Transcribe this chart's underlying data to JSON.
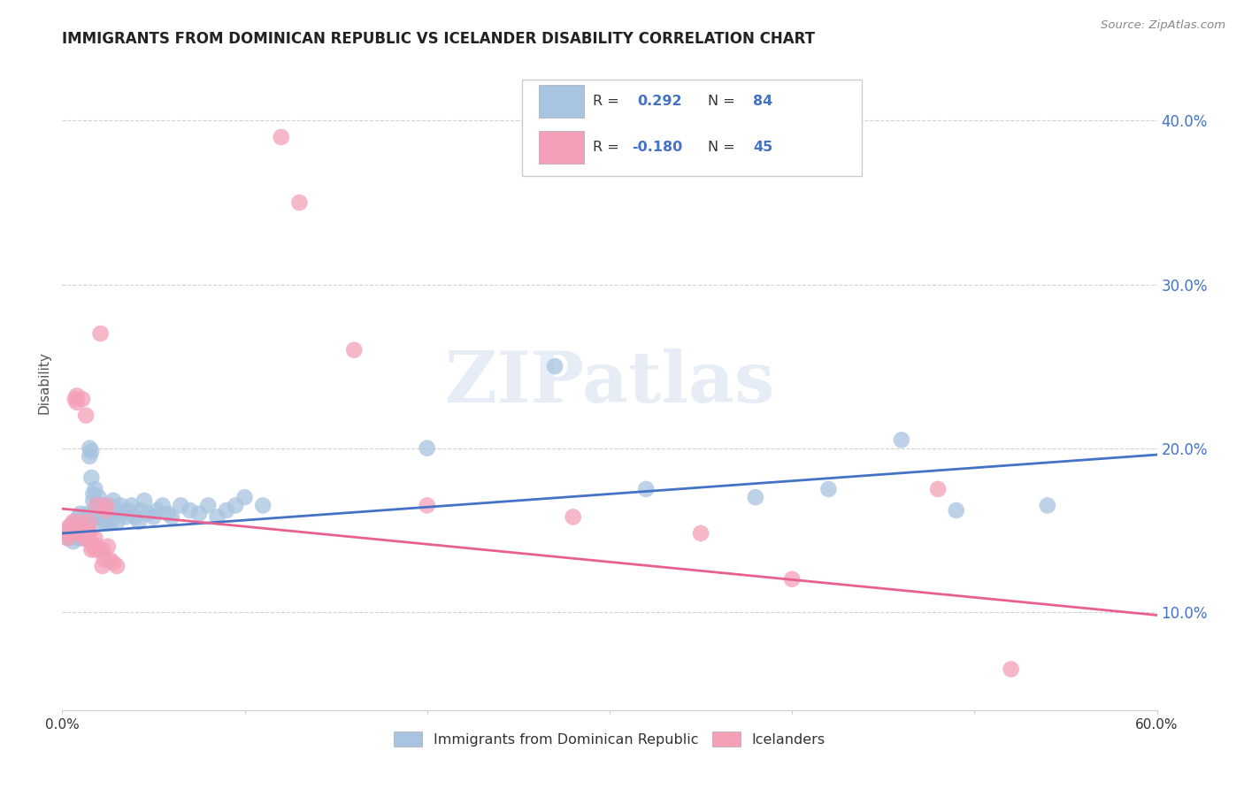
{
  "title": "IMMIGRANTS FROM DOMINICAN REPUBLIC VS ICELANDER DISABILITY CORRELATION CHART",
  "source": "Source: ZipAtlas.com",
  "ylabel": "Disability",
  "xlim": [
    0.0,
    0.6
  ],
  "ylim": [
    0.04,
    0.44
  ],
  "xlabel_ticks_pos": [
    0.0,
    0.1,
    0.2,
    0.3,
    0.4,
    0.5,
    0.6
  ],
  "xlabel_ticks_labels": [
    "0.0%",
    "",
    "",
    "",
    "",
    "",
    "60.0%"
  ],
  "ylabel_ticks_pos": [
    0.1,
    0.2,
    0.3,
    0.4
  ],
  "ylabel_ticks_labels": [
    "10.0%",
    "20.0%",
    "30.0%",
    "40.0%"
  ],
  "blue_R": 0.292,
  "blue_N": 84,
  "pink_R": -0.18,
  "pink_N": 45,
  "blue_color": "#a8c4e0",
  "pink_color": "#f4a0b8",
  "blue_line_color": "#4472c4",
  "pink_line_color": "#e86090",
  "watermark_text": "ZIPatlas",
  "legend_label_blue": "Immigrants from Dominican Republic",
  "legend_label_pink": "Icelanders",
  "blue_line_x": [
    0.0,
    0.6
  ],
  "blue_line_y": [
    0.148,
    0.196
  ],
  "pink_line_x": [
    0.0,
    0.6
  ],
  "pink_line_y": [
    0.163,
    0.098
  ],
  "blue_points": [
    [
      0.002,
      0.148
    ],
    [
      0.003,
      0.145
    ],
    [
      0.004,
      0.152
    ],
    [
      0.005,
      0.148
    ],
    [
      0.006,
      0.15
    ],
    [
      0.006,
      0.143
    ],
    [
      0.007,
      0.155
    ],
    [
      0.007,
      0.148
    ],
    [
      0.008,
      0.152
    ],
    [
      0.008,
      0.145
    ],
    [
      0.009,
      0.158
    ],
    [
      0.009,
      0.15
    ],
    [
      0.01,
      0.16
    ],
    [
      0.01,
      0.145
    ],
    [
      0.011,
      0.148
    ],
    [
      0.011,
      0.155
    ],
    [
      0.012,
      0.152
    ],
    [
      0.012,
      0.148
    ],
    [
      0.013,
      0.155
    ],
    [
      0.013,
      0.145
    ],
    [
      0.014,
      0.16
    ],
    [
      0.014,
      0.15
    ],
    [
      0.015,
      0.2
    ],
    [
      0.015,
      0.195
    ],
    [
      0.016,
      0.198
    ],
    [
      0.016,
      0.182
    ],
    [
      0.017,
      0.168
    ],
    [
      0.017,
      0.172
    ],
    [
      0.018,
      0.175
    ],
    [
      0.018,
      0.162
    ],
    [
      0.019,
      0.158
    ],
    [
      0.019,
      0.165
    ],
    [
      0.02,
      0.17
    ],
    [
      0.02,
      0.16
    ],
    [
      0.021,
      0.158
    ],
    [
      0.021,
      0.155
    ],
    [
      0.022,
      0.165
    ],
    [
      0.022,
      0.158
    ],
    [
      0.023,
      0.165
    ],
    [
      0.023,
      0.155
    ],
    [
      0.024,
      0.162
    ],
    [
      0.024,
      0.158
    ],
    [
      0.025,
      0.16
    ],
    [
      0.025,
      0.155
    ],
    [
      0.026,
      0.165
    ],
    [
      0.026,
      0.158
    ],
    [
      0.027,
      0.162
    ],
    [
      0.027,
      0.155
    ],
    [
      0.028,
      0.168
    ],
    [
      0.028,
      0.16
    ],
    [
      0.03,
      0.162
    ],
    [
      0.03,
      0.155
    ],
    [
      0.032,
      0.165
    ],
    [
      0.033,
      0.16
    ],
    [
      0.035,
      0.158
    ],
    [
      0.036,
      0.162
    ],
    [
      0.038,
      0.165
    ],
    [
      0.04,
      0.158
    ],
    [
      0.042,
      0.155
    ],
    [
      0.043,
      0.162
    ],
    [
      0.045,
      0.168
    ],
    [
      0.047,
      0.16
    ],
    [
      0.05,
      0.158
    ],
    [
      0.052,
      0.162
    ],
    [
      0.055,
      0.165
    ],
    [
      0.058,
      0.16
    ],
    [
      0.06,
      0.158
    ],
    [
      0.065,
      0.165
    ],
    [
      0.07,
      0.162
    ],
    [
      0.075,
      0.16
    ],
    [
      0.08,
      0.165
    ],
    [
      0.085,
      0.158
    ],
    [
      0.09,
      0.162
    ],
    [
      0.095,
      0.165
    ],
    [
      0.1,
      0.17
    ],
    [
      0.11,
      0.165
    ],
    [
      0.2,
      0.2
    ],
    [
      0.27,
      0.25
    ],
    [
      0.32,
      0.175
    ],
    [
      0.38,
      0.17
    ],
    [
      0.42,
      0.175
    ],
    [
      0.46,
      0.205
    ],
    [
      0.49,
      0.162
    ],
    [
      0.54,
      0.165
    ]
  ],
  "pink_points": [
    [
      0.002,
      0.148
    ],
    [
      0.003,
      0.145
    ],
    [
      0.004,
      0.152
    ],
    [
      0.005,
      0.148
    ],
    [
      0.006,
      0.155
    ],
    [
      0.006,
      0.148
    ],
    [
      0.007,
      0.23
    ],
    [
      0.008,
      0.232
    ],
    [
      0.008,
      0.228
    ],
    [
      0.01,
      0.148
    ],
    [
      0.01,
      0.155
    ],
    [
      0.011,
      0.23
    ],
    [
      0.012,
      0.148
    ],
    [
      0.012,
      0.145
    ],
    [
      0.013,
      0.22
    ],
    [
      0.014,
      0.148
    ],
    [
      0.015,
      0.155
    ],
    [
      0.015,
      0.148
    ],
    [
      0.016,
      0.142
    ],
    [
      0.016,
      0.138
    ],
    [
      0.017,
      0.14
    ],
    [
      0.018,
      0.145
    ],
    [
      0.018,
      0.138
    ],
    [
      0.019,
      0.165
    ],
    [
      0.019,
      0.14
    ],
    [
      0.02,
      0.138
    ],
    [
      0.021,
      0.27
    ],
    [
      0.022,
      0.138
    ],
    [
      0.022,
      0.128
    ],
    [
      0.023,
      0.132
    ],
    [
      0.024,
      0.165
    ],
    [
      0.024,
      0.162
    ],
    [
      0.025,
      0.14
    ],
    [
      0.026,
      0.132
    ],
    [
      0.028,
      0.13
    ],
    [
      0.03,
      0.128
    ],
    [
      0.12,
      0.39
    ],
    [
      0.13,
      0.35
    ],
    [
      0.16,
      0.26
    ],
    [
      0.2,
      0.165
    ],
    [
      0.28,
      0.158
    ],
    [
      0.35,
      0.148
    ],
    [
      0.4,
      0.12
    ],
    [
      0.48,
      0.175
    ],
    [
      0.52,
      0.065
    ]
  ]
}
